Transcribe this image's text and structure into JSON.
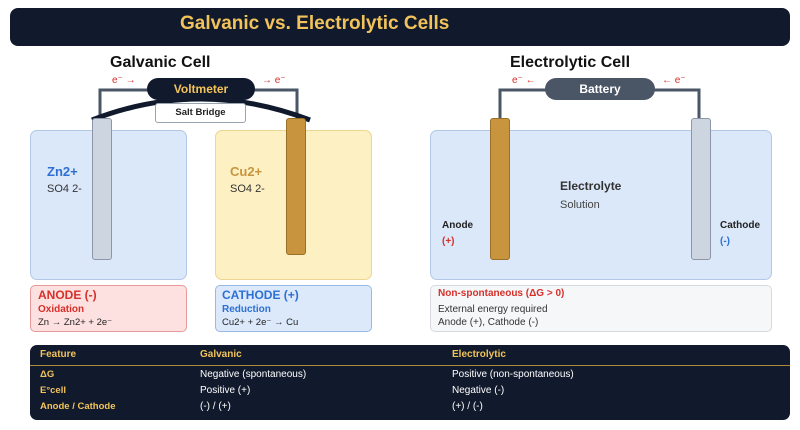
{
  "title": "Galvanic vs. Electrolytic Cells",
  "galvanic": {
    "heading": "Galvanic Cell",
    "electron_left": "e⁻ →",
    "electron_right": "→ e⁻",
    "meter_label": "Voltmeter",
    "salt_bridge": "Salt Bridge",
    "left_ion": "Zn2+",
    "left_anion": "SO4 2-",
    "right_ion": "Cu2+",
    "right_anion": "SO4 2-",
    "anode_box": {
      "title": "ANODE (-)",
      "process": "Oxidation",
      "reaction": "Zn → Zn2+ + 2e⁻"
    },
    "cathode_box": {
      "title": "CATHODE (+)",
      "process": "Reduction",
      "reaction": "Cu2+ + 2e⁻ → Cu"
    }
  },
  "electrolytic": {
    "heading": "Electrolytic Cell",
    "electron_left": "e⁻ ←",
    "electron_right": "← e⁻",
    "source_label": "Battery",
    "solution_title": "Electrolyte",
    "solution_sub": "Solution",
    "anode_label": "Anode",
    "anode_sign": "(+)",
    "cathode_label": "Cathode",
    "cathode_sign": "(-)",
    "info_box": {
      "title": "Non-spontaneous (ΔG > 0)",
      "line1": "External energy required",
      "line2": "Anode (+), Cathode (-)"
    }
  },
  "table": {
    "headers": [
      "Feature",
      "Galvanic",
      "Electrolytic"
    ],
    "rows": [
      [
        "ΔG",
        "Negative (spontaneous)",
        "Positive (non-spontaneous)"
      ],
      [
        "E°cell",
        "Positive (+)",
        "Negative (-)"
      ],
      [
        "Anode / Cathode",
        "(-) / (+)",
        "(+) / (-)"
      ]
    ]
  },
  "colors": {
    "banner": "#111a2c",
    "gold": "#f2c35a",
    "zinc_solution": "#dbe8fa",
    "copper_solution": "#fdf0c2",
    "anode_box": "#fde0e0",
    "cathode_box": "#dce9fb",
    "copper_electrode": "#c8953e",
    "zinc_electrode": "#cdd5e0"
  }
}
